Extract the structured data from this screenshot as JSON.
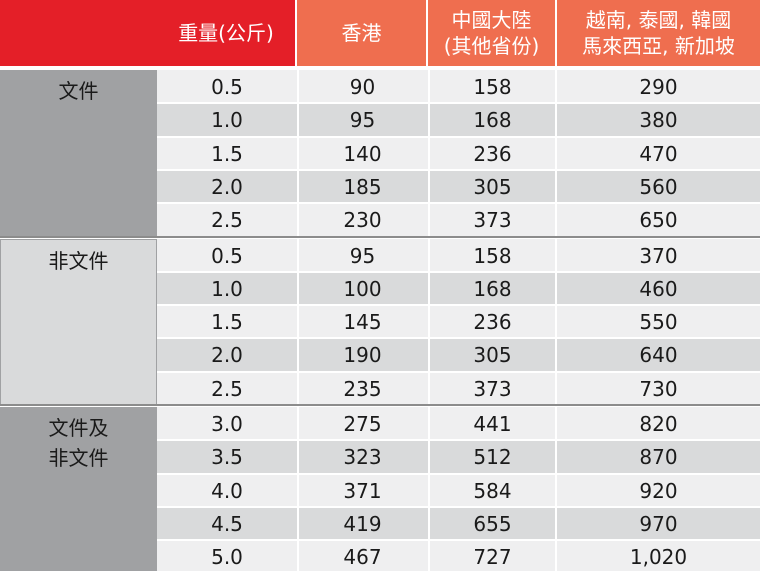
{
  "colors": {
    "header_red": "#e41f28",
    "header_orange": "#ef6e4f",
    "row_light": "#efeff0",
    "row_dark": "#d9dadb",
    "cat_dark": "#a0a1a3",
    "cat_light": "#d9dadb"
  },
  "header": {
    "weight": "重量(公斤)",
    "hk": "香港",
    "china_line1": "中國大陸",
    "china_line2": "(其他省份)",
    "asia_line1": "越南, 泰國, 韓國",
    "asia_line2": "馬來西亞, 新加坡"
  },
  "groups": [
    {
      "label_lines": [
        "文件"
      ],
      "rows": [
        {
          "weight": "0.5",
          "hk": "90",
          "china": "158",
          "asia": "290"
        },
        {
          "weight": "1.0",
          "hk": "95",
          "china": "168",
          "asia": "380"
        },
        {
          "weight": "1.5",
          "hk": "140",
          "china": "236",
          "asia": "470"
        },
        {
          "weight": "2.0",
          "hk": "185",
          "china": "305",
          "asia": "560"
        },
        {
          "weight": "2.5",
          "hk": "230",
          "china": "373",
          "asia": "650"
        }
      ]
    },
    {
      "label_lines": [
        "非文件"
      ],
      "rows": [
        {
          "weight": "0.5",
          "hk": "95",
          "china": "158",
          "asia": "370"
        },
        {
          "weight": "1.0",
          "hk": "100",
          "china": "168",
          "asia": "460"
        },
        {
          "weight": "1.5",
          "hk": "145",
          "china": "236",
          "asia": "550"
        },
        {
          "weight": "2.0",
          "hk": "190",
          "china": "305",
          "asia": "640"
        },
        {
          "weight": "2.5",
          "hk": "235",
          "china": "373",
          "asia": "730"
        }
      ]
    },
    {
      "label_lines": [
        "文件及",
        "非文件"
      ],
      "rows": [
        {
          "weight": "3.0",
          "hk": "275",
          "china": "441",
          "asia": "820"
        },
        {
          "weight": "3.5",
          "hk": "323",
          "china": "512",
          "asia": "870"
        },
        {
          "weight": "4.0",
          "hk": "371",
          "china": "584",
          "asia": "920"
        },
        {
          "weight": "4.5",
          "hk": "419",
          "china": "655",
          "asia": "970"
        },
        {
          "weight": "5.0",
          "hk": "467",
          "china": "727",
          "asia": "1,020"
        }
      ]
    }
  ]
}
